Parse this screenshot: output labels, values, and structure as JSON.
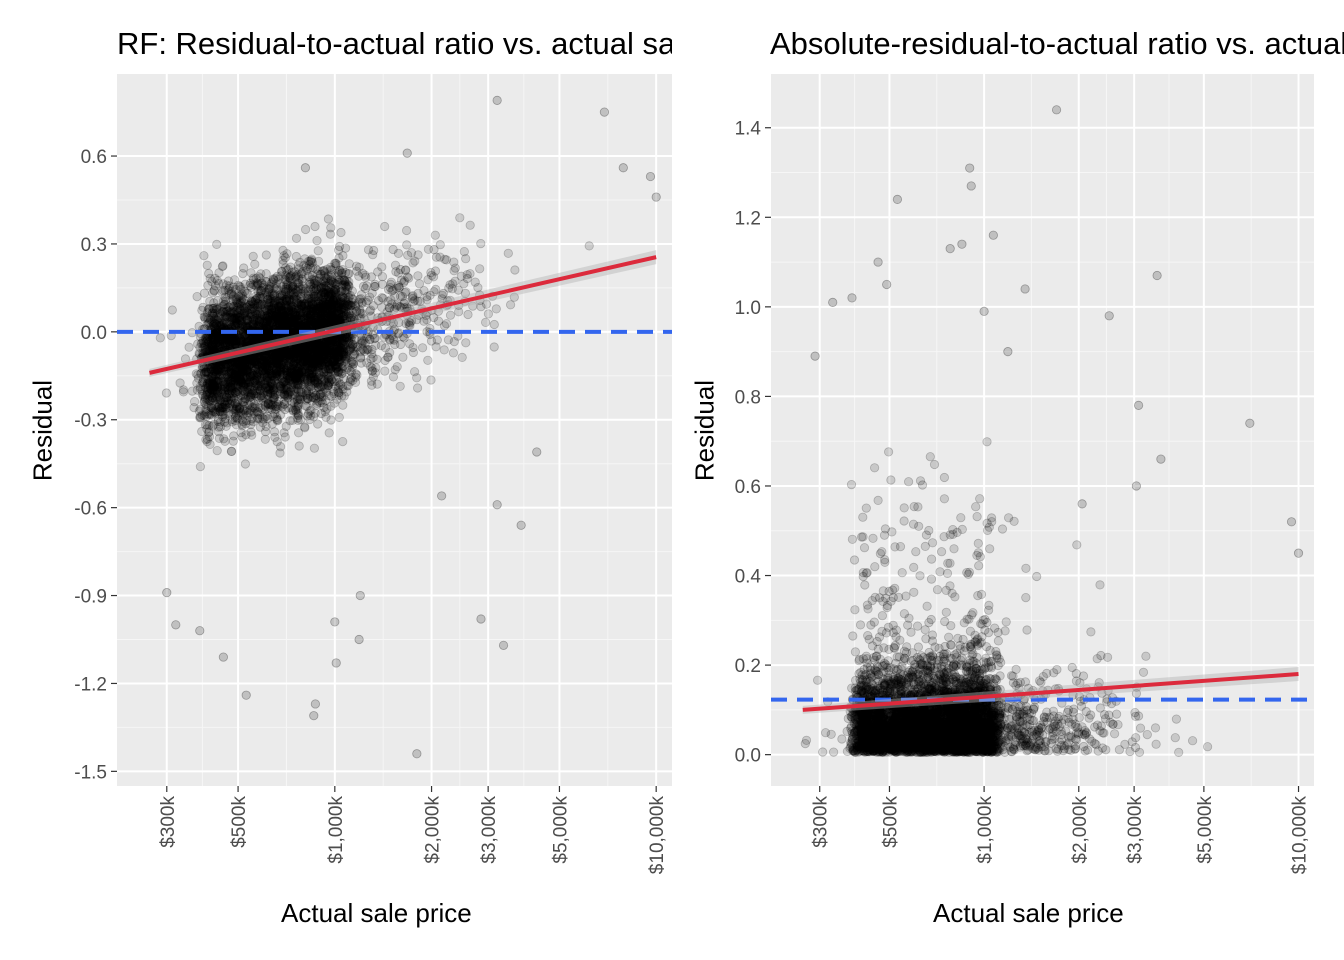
{
  "chart_data": [
    {
      "type": "scatter",
      "title": "RF: Residual-to-actual ratio vs. actual sale price",
      "xlabel": "Actual sale price",
      "ylabel": "Residual",
      "x_scale": "log10",
      "x_ticks": [
        300000,
        500000,
        1000000,
        2000000,
        3000000,
        5000000,
        10000000
      ],
      "x_tick_labels": [
        "$300k",
        "$500k",
        "$1,000k",
        "$2,000k",
        "$3,000k",
        "$5,000k",
        "$10,000k"
      ],
      "xlim": [
        210000,
        11200000
      ],
      "y_ticks": [
        -1.5,
        -1.2,
        -0.9,
        -0.6,
        -0.3,
        0.0,
        0.3,
        0.6
      ],
      "y_tick_labels": [
        "-1.5",
        "-1.2",
        "-0.9",
        "-0.6",
        "-0.3",
        "0.0",
        "0.3",
        "0.6"
      ],
      "ylim": [
        -1.55,
        0.88
      ],
      "grid": true,
      "reference_line": {
        "y": 0.0,
        "style": "dashed",
        "color": "#3366ee"
      },
      "trend_line": {
        "x": [
          265000,
          10000000
        ],
        "y": [
          -0.14,
          0.255
        ],
        "color": "#dc2a3c"
      },
      "point_color": "#000000",
      "point_alpha": 0.15,
      "point_cloud": {
        "count": 5200,
        "center_x": 650000,
        "center_y": -0.05,
        "spread_y": 0.17
      },
      "sample_points": [
        {
          "x": 3200000,
          "y": 0.79
        },
        {
          "x": 6900000,
          "y": 0.75
        },
        {
          "x": 1680000,
          "y": 0.61
        },
        {
          "x": 810000,
          "y": 0.56
        },
        {
          "x": 7900000,
          "y": 0.56
        },
        {
          "x": 9600000,
          "y": 0.53
        },
        {
          "x": 10000000,
          "y": 0.46
        },
        {
          "x": 2850000,
          "y": -0.98
        },
        {
          "x": 3350000,
          "y": -1.07
        },
        {
          "x": 1190000,
          "y": -1.05
        },
        {
          "x": 1800000,
          "y": -1.44
        },
        {
          "x": 860000,
          "y": -1.31
        },
        {
          "x": 870000,
          "y": -1.27
        },
        {
          "x": 530000,
          "y": -1.24
        },
        {
          "x": 450000,
          "y": -1.11
        },
        {
          "x": 300000,
          "y": -0.89
        },
        {
          "x": 320000,
          "y": -1.0
        },
        {
          "x": 380000,
          "y": -1.02
        },
        {
          "x": 1010000,
          "y": -1.13
        },
        {
          "x": 3800000,
          "y": -0.66
        },
        {
          "x": 3200000,
          "y": -0.59
        },
        {
          "x": 2150000,
          "y": -0.56
        },
        {
          "x": 4250000,
          "y": -0.41
        },
        {
          "x": 1200000,
          "y": -0.9
        },
        {
          "x": 1000000,
          "y": -0.99
        }
      ]
    },
    {
      "type": "scatter",
      "title": "Absolute-residual-to-actual ratio vs. actual sale price",
      "xlabel": "Actual sale price",
      "ylabel": "Residual",
      "x_scale": "log10",
      "x_ticks": [
        300000,
        500000,
        1000000,
        2000000,
        3000000,
        5000000,
        10000000
      ],
      "x_tick_labels": [
        "$300k",
        "$500k",
        "$1,000k",
        "$2,000k",
        "$3,000k",
        "$5,000k",
        "$10,000k"
      ],
      "xlim": [
        210000,
        11200000
      ],
      "y_ticks": [
        0.0,
        0.2,
        0.4,
        0.6,
        0.8,
        1.0,
        1.2,
        1.4
      ],
      "y_tick_labels": [
        "0.0",
        "0.2",
        "0.4",
        "0.6",
        "0.8",
        "1.0",
        "1.2",
        "1.4"
      ],
      "ylim": [
        -0.07,
        1.52
      ],
      "grid": true,
      "reference_line": {
        "y": 0.123,
        "style": "dashed",
        "color": "#3366ee"
      },
      "trend_line": {
        "x": [
          265000,
          10000000
        ],
        "y": [
          0.1,
          0.18
        ],
        "color": "#dc2a3c"
      },
      "point_color": "#000000",
      "point_alpha": 0.15,
      "point_cloud": {
        "count": 5200,
        "center_x": 650000,
        "center_y": 0.1,
        "spread_y": 0.12
      },
      "sample_points": [
        {
          "x": 1700000,
          "y": 1.44
        },
        {
          "x": 900000,
          "y": 1.31
        },
        {
          "x": 910000,
          "y": 1.27
        },
        {
          "x": 530000,
          "y": 1.24
        },
        {
          "x": 850000,
          "y": 1.14
        },
        {
          "x": 780000,
          "y": 1.13
        },
        {
          "x": 1070000,
          "y": 1.16
        },
        {
          "x": 460000,
          "y": 1.1
        },
        {
          "x": 3550000,
          "y": 1.07
        },
        {
          "x": 1350000,
          "y": 1.04
        },
        {
          "x": 490000,
          "y": 1.05
        },
        {
          "x": 330000,
          "y": 1.01
        },
        {
          "x": 380000,
          "y": 1.02
        },
        {
          "x": 1000000,
          "y": 0.99
        },
        {
          "x": 2500000,
          "y": 0.98
        },
        {
          "x": 290000,
          "y": 0.89
        },
        {
          "x": 7000000,
          "y": 0.74
        },
        {
          "x": 3100000,
          "y": 0.78
        },
        {
          "x": 3650000,
          "y": 0.66
        },
        {
          "x": 9500000,
          "y": 0.52
        },
        {
          "x": 10000000,
          "y": 0.45
        },
        {
          "x": 1190000,
          "y": 0.9
        },
        {
          "x": 2050000,
          "y": 0.56
        },
        {
          "x": 3050000,
          "y": 0.6
        }
      ]
    }
  ]
}
